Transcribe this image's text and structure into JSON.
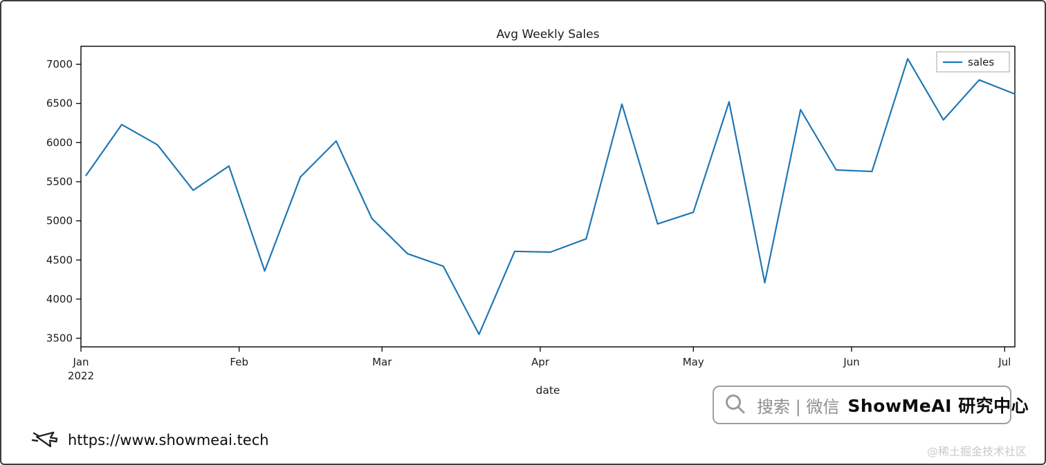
{
  "chart_data": {
    "type": "line",
    "title": "Avg Weekly Sales",
    "xlabel": "date",
    "ylabel": "",
    "legend": [
      "sales"
    ],
    "legend_position": "upper right",
    "line_color": "#1f77b4",
    "grid": false,
    "xlim": [
      "2022-01-01",
      "2022-07-03"
    ],
    "ylim": [
      3390,
      7230
    ],
    "y_ticks": [
      3500,
      4000,
      4500,
      5000,
      5500,
      6000,
      6500,
      7000
    ],
    "x_ticks": [
      {
        "date": "2022-01-01",
        "label": "Jan",
        "sublabel": "2022"
      },
      {
        "date": "2022-02-01",
        "label": "Feb"
      },
      {
        "date": "2022-03-01",
        "label": "Mar"
      },
      {
        "date": "2022-04-01",
        "label": "Apr"
      },
      {
        "date": "2022-05-01",
        "label": "May"
      },
      {
        "date": "2022-06-01",
        "label": "Jun"
      },
      {
        "date": "2022-07-01",
        "label": "Jul"
      }
    ],
    "dates": [
      "2022-01-02",
      "2022-01-09",
      "2022-01-16",
      "2022-01-23",
      "2022-01-30",
      "2022-02-06",
      "2022-02-13",
      "2022-02-20",
      "2022-02-27",
      "2022-03-06",
      "2022-03-13",
      "2022-03-20",
      "2022-03-27",
      "2022-04-03",
      "2022-04-10",
      "2022-04-17",
      "2022-04-24",
      "2022-05-01",
      "2022-05-08",
      "2022-05-15",
      "2022-05-22",
      "2022-05-29",
      "2022-06-05",
      "2022-06-12",
      "2022-06-19",
      "2022-06-26",
      "2022-07-03"
    ],
    "values": [
      5580,
      6230,
      5970,
      5390,
      5700,
      4360,
      5560,
      6020,
      5030,
      4580,
      4420,
      3550,
      4610,
      4600,
      4770,
      6490,
      4960,
      5110,
      6520,
      4210,
      6420,
      5650,
      5630,
      7070,
      6290,
      6800,
      6620
    ]
  },
  "watermark": {
    "search_label": "搜索 | 微信",
    "brand": "ShowMeAI 研究中心"
  },
  "footer": {
    "url": "https://www.showmeai.tech",
    "community": "@稀土掘金技术社区"
  }
}
